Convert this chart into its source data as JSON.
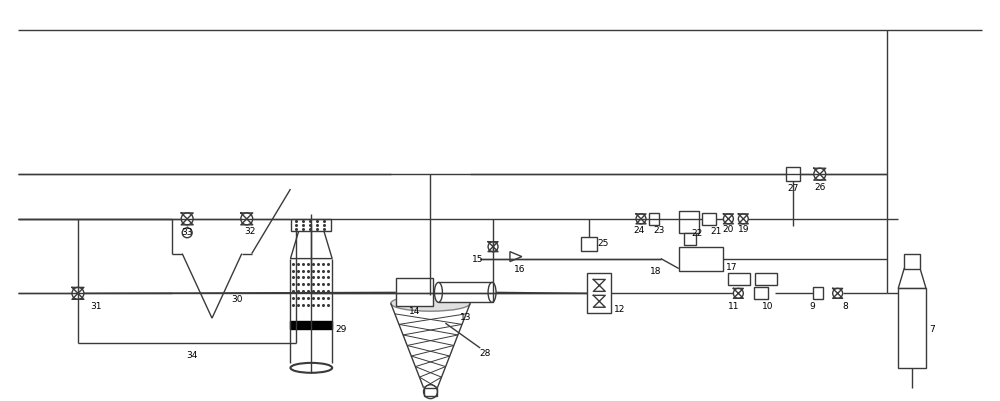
{
  "bg_color": "#ffffff",
  "line_color": "#3a3a3a",
  "lw": 1.0,
  "fig_width": 10.0,
  "fig_height": 4.02
}
